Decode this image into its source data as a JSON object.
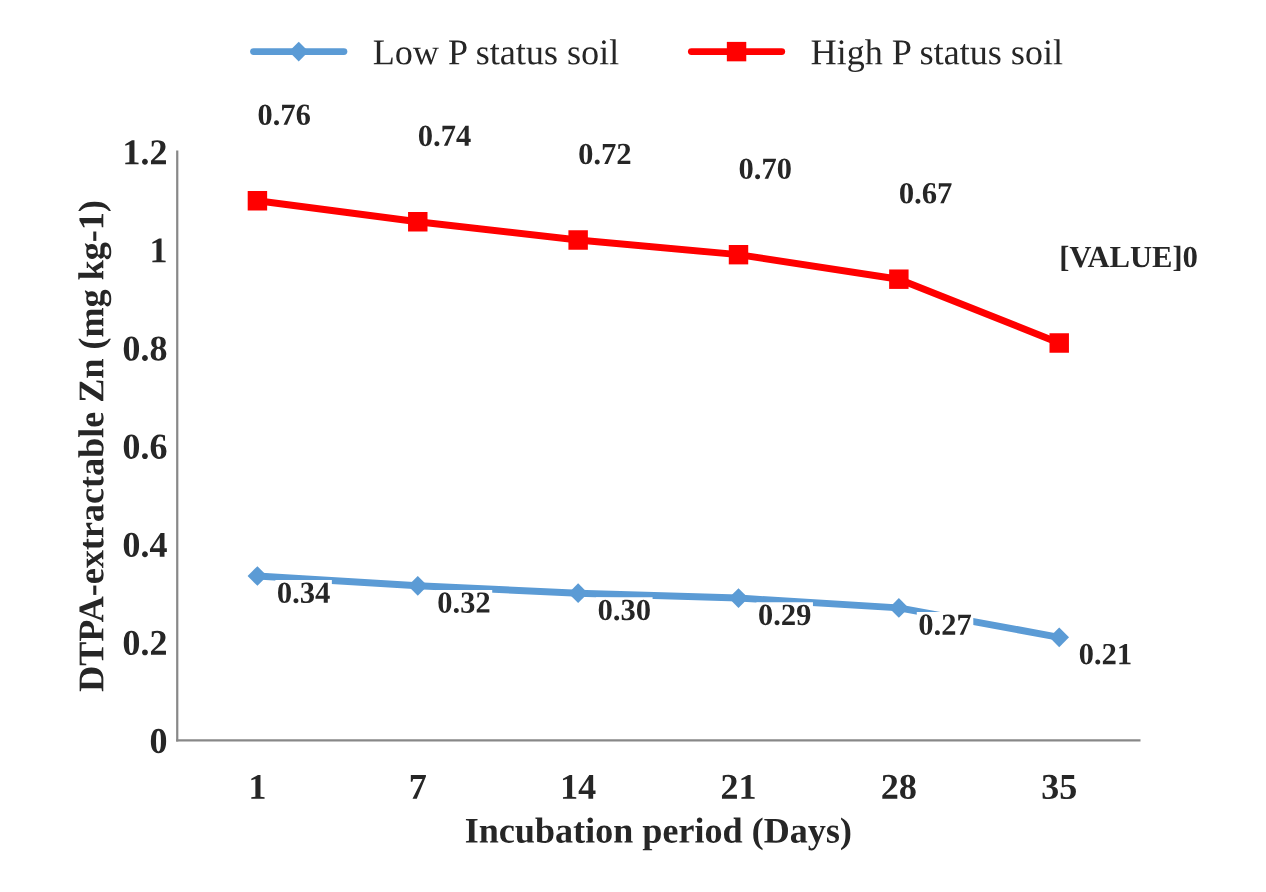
{
  "chart_data": {
    "type": "line",
    "xlabel": "Incubation period (Days)",
    "ylabel": "DTPA-extractable Zn (mg kg-1)",
    "categories": [
      "1",
      "7",
      "14",
      "21",
      "28",
      "35"
    ],
    "series": [
      {
        "name": "Low P status soil",
        "color": "#5b9bd5",
        "marker": "diamond",
        "values": [
          0.335,
          0.315,
          0.3,
          0.29,
          0.27,
          0.21
        ],
        "value_labels": [
          "0.34",
          "0.32",
          "0.30",
          "0.29",
          "0.27",
          "0.21"
        ]
      },
      {
        "name": "High P status soil",
        "color": "#ff0000",
        "marker": "square",
        "values": [
          1.1,
          1.057,
          1.02,
          0.99,
          0.94,
          0.81
        ]
      }
    ],
    "annotations": [
      {
        "text": "0.76",
        "x": "1",
        "y": 1.1
      },
      {
        "text": "0.74",
        "x": "7",
        "y": 1.057
      },
      {
        "text": "0.72",
        "x": "14",
        "y": 1.02
      },
      {
        "text": "0.70",
        "x": "21",
        "y": 0.99
      },
      {
        "text": "0.67",
        "x": "28",
        "y": 0.94
      },
      {
        "text": "[VALUE]0",
        "x": "35",
        "y": 0.81
      }
    ],
    "ylim": [
      0,
      1.2
    ],
    "yticks": [
      0,
      0.2,
      0.4,
      0.6,
      0.8,
      1,
      1.2
    ],
    "grid": false,
    "legend": "top"
  }
}
